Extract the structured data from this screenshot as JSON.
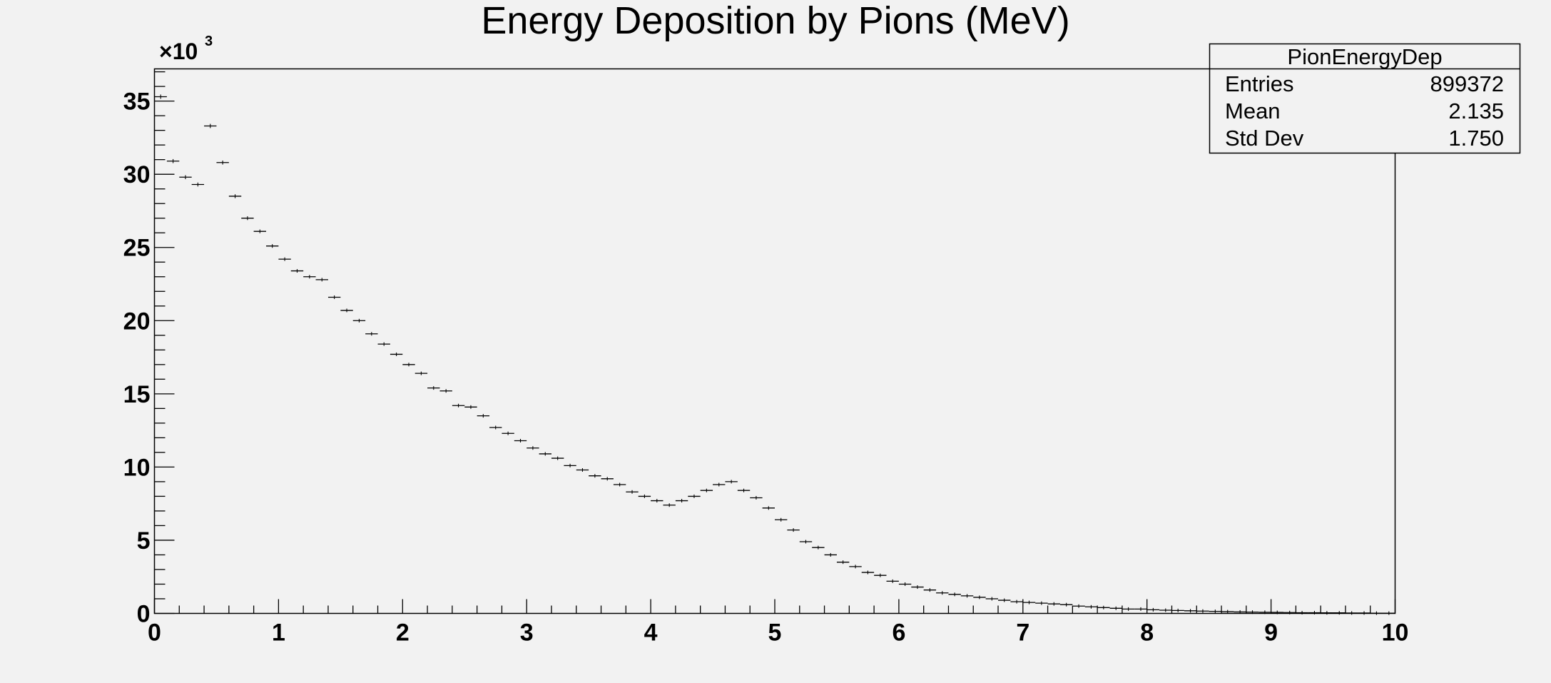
{
  "chart_data": {
    "type": "histogram",
    "title": "Energy Deposition by Pions (MeV)",
    "xlabel": "",
    "ylabel": "",
    "xlim": [
      0,
      10
    ],
    "ylim": [
      0,
      37.2
    ],
    "y_multiplier": "×10",
    "y_multiplier_exponent": "3",
    "x_ticks": [
      "0",
      "1",
      "2",
      "3",
      "4",
      "5",
      "6",
      "7",
      "8",
      "9",
      "10"
    ],
    "y_ticks": [
      "0",
      "5",
      "10",
      "15",
      "20",
      "25",
      "30",
      "35"
    ],
    "x_tick_values": [
      0,
      1,
      2,
      3,
      4,
      5,
      6,
      7,
      8,
      9,
      10
    ],
    "y_tick_values": [
      0,
      5,
      10,
      15,
      20,
      25,
      30,
      35
    ],
    "bin_width": 0.1,
    "values": [
      35.3,
      30.9,
      29.8,
      29.3,
      33.3,
      30.8,
      28.5,
      27.0,
      26.1,
      25.1,
      24.2,
      23.4,
      23.0,
      22.8,
      21.6,
      20.7,
      20.0,
      19.1,
      18.4,
      17.7,
      17.0,
      16.4,
      15.4,
      15.2,
      14.2,
      14.1,
      13.5,
      12.7,
      12.3,
      11.8,
      11.3,
      10.9,
      10.6,
      10.1,
      9.8,
      9.4,
      9.2,
      8.8,
      8.3,
      8.0,
      7.7,
      7.4,
      7.7,
      8.0,
      8.4,
      8.8,
      9.0,
      8.4,
      7.9,
      7.2,
      6.4,
      5.7,
      4.9,
      4.5,
      4.0,
      3.5,
      3.2,
      2.8,
      2.6,
      2.2,
      2.0,
      1.8,
      1.6,
      1.4,
      1.3,
      1.2,
      1.1,
      1.0,
      0.9,
      0.8,
      0.75,
      0.7,
      0.65,
      0.6,
      0.5,
      0.45,
      0.4,
      0.35,
      0.3,
      0.3,
      0.25,
      0.22,
      0.2,
      0.18,
      0.16,
      0.14,
      0.12,
      0.1,
      0.09,
      0.08,
      0.07,
      0.06,
      0.05,
      0.05,
      0.04,
      0.04,
      0.03,
      0.03,
      0.02,
      0.02
    ],
    "error_bars": true,
    "stats_box": {
      "name": "PionEnergyDep",
      "rows": [
        {
          "label": "Entries",
          "value": "899372"
        },
        {
          "label": "Mean",
          "value": "2.135"
        },
        {
          "label": "Std Dev",
          "value": "1.750"
        }
      ]
    },
    "grid": false
  },
  "colors": {
    "background": "#f2f2f2",
    "frame": "#000000",
    "marker": "#000000"
  }
}
